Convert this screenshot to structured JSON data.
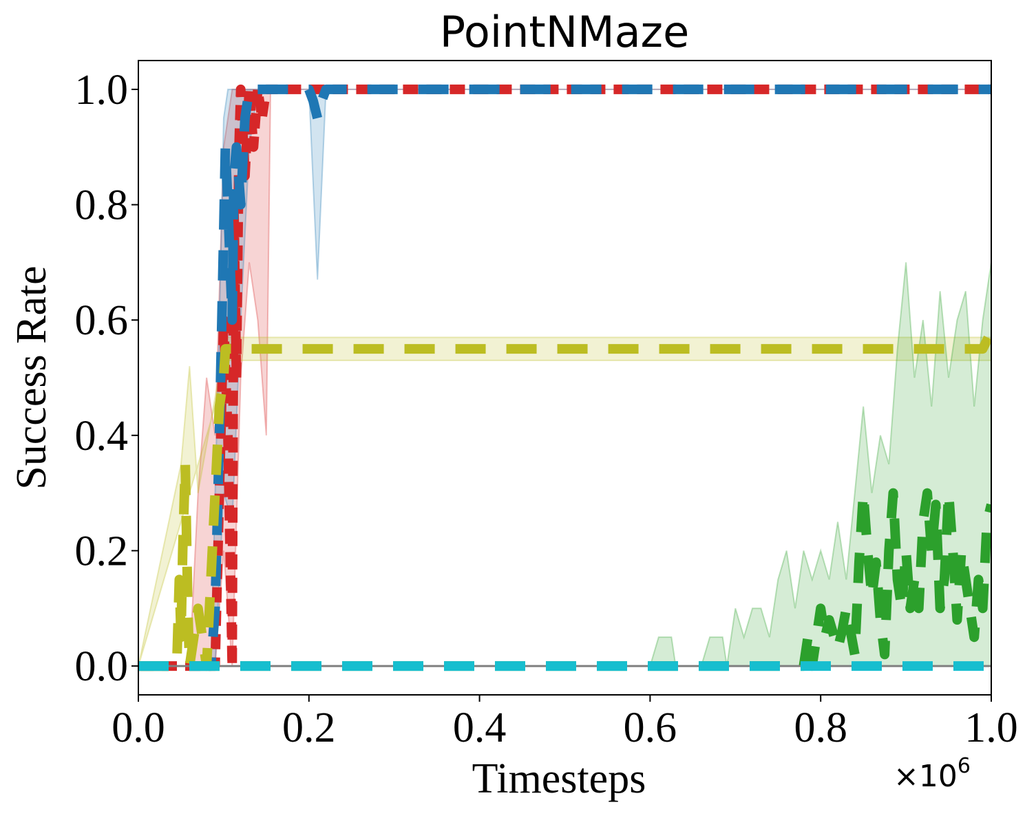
{
  "chart_data": {
    "type": "line",
    "title": "PointNMaze",
    "xlabel": "Timesteps",
    "ylabel": "Success Rate",
    "x_offset_label": "×10",
    "x_offset_exponent": "6",
    "xlim": [
      0.0,
      1.0
    ],
    "ylim": [
      -0.05,
      1.05
    ],
    "x_ticks": [
      "0.0",
      "0.2",
      "0.4",
      "0.6",
      "0.8",
      "1.0"
    ],
    "y_ticks": [
      "0.0",
      "0.2",
      "0.4",
      "0.6",
      "0.8",
      "1.0"
    ],
    "grid": false,
    "legend": "none",
    "series": [
      {
        "color": "#d62728",
        "style": "dash-short",
        "mean": [
          [
            0,
            0
          ],
          [
            0.09,
            0
          ],
          [
            0.095,
            0.3
          ],
          [
            0.1,
            0.6
          ],
          [
            0.105,
            0.4
          ],
          [
            0.11,
            0
          ],
          [
            0.112,
            0.8
          ],
          [
            0.115,
            0.5
          ],
          [
            0.118,
            0.9
          ],
          [
            0.12,
            1
          ],
          [
            0.125,
            0.85
          ],
          [
            0.13,
            1
          ],
          [
            0.135,
            0.9
          ],
          [
            0.14,
            1
          ],
          [
            0.145,
            0.95
          ],
          [
            0.15,
            1
          ],
          [
            0.2,
            1
          ],
          [
            0.4,
            1
          ],
          [
            0.6,
            1
          ],
          [
            0.8,
            1
          ],
          [
            1.0,
            1
          ]
        ],
        "band_low": [
          [
            0,
            0
          ],
          [
            0.09,
            0
          ],
          [
            0.1,
            0.2
          ],
          [
            0.11,
            0
          ],
          [
            0.12,
            0.5
          ],
          [
            0.13,
            0.7
          ],
          [
            0.14,
            0.6
          ],
          [
            0.15,
            0.4
          ],
          [
            0.155,
            1
          ],
          [
            1.0,
            1
          ]
        ],
        "band_high": [
          [
            0,
            0
          ],
          [
            0.06,
            0
          ],
          [
            0.07,
            0.3
          ],
          [
            0.08,
            0.5
          ],
          [
            0.09,
            0.4
          ],
          [
            0.1,
            0.9
          ],
          [
            0.11,
            1
          ],
          [
            0.12,
            1
          ],
          [
            0.15,
            1
          ],
          [
            1.0,
            1
          ]
        ]
      },
      {
        "color": "#1f77b4",
        "style": "dash-long",
        "mean": [
          [
            0,
            0
          ],
          [
            0.085,
            0
          ],
          [
            0.09,
            0.1
          ],
          [
            0.095,
            0.4
          ],
          [
            0.1,
            0.75
          ],
          [
            0.102,
            0.9
          ],
          [
            0.105,
            0.8
          ],
          [
            0.11,
            0.6
          ],
          [
            0.112,
            0.85
          ],
          [
            0.115,
            0.9
          ],
          [
            0.12,
            0.8
          ],
          [
            0.125,
            0.95
          ],
          [
            0.13,
            1
          ],
          [
            0.2,
            1
          ],
          [
            0.205,
            0.98
          ],
          [
            0.21,
            0.95
          ],
          [
            0.215,
            0.98
          ],
          [
            0.22,
            1
          ],
          [
            0.4,
            1
          ],
          [
            0.6,
            1
          ],
          [
            0.8,
            1
          ],
          [
            1.0,
            1
          ]
        ],
        "band_low": [
          [
            0,
            0
          ],
          [
            0.09,
            0
          ],
          [
            0.1,
            0.3
          ],
          [
            0.11,
            0.25
          ],
          [
            0.12,
            0.6
          ],
          [
            0.13,
            0.9
          ],
          [
            0.14,
            1
          ],
          [
            0.2,
            1
          ],
          [
            0.21,
            0.67
          ],
          [
            0.22,
            1
          ],
          [
            1.0,
            1
          ]
        ],
        "band_high": [
          [
            0,
            0
          ],
          [
            0.085,
            0
          ],
          [
            0.095,
            0.6
          ],
          [
            0.1,
            0.95
          ],
          [
            0.105,
            1
          ],
          [
            1.0,
            1
          ]
        ]
      },
      {
        "color": "#bcbd22",
        "style": "dash-long",
        "mean": [
          [
            0,
            0
          ],
          [
            0.045,
            0
          ],
          [
            0.048,
            0.15
          ],
          [
            0.05,
            0.05
          ],
          [
            0.052,
            0.2
          ],
          [
            0.055,
            0.35
          ],
          [
            0.058,
            0.1
          ],
          [
            0.06,
            0
          ],
          [
            0.065,
            0.05
          ],
          [
            0.07,
            0.1
          ],
          [
            0.075,
            0.05
          ],
          [
            0.08,
            0
          ],
          [
            0.085,
            0.15
          ],
          [
            0.09,
            0.3
          ],
          [
            0.095,
            0.45
          ],
          [
            0.1,
            0.5
          ],
          [
            0.102,
            0.55
          ],
          [
            0.2,
            0.55
          ],
          [
            0.4,
            0.55
          ],
          [
            0.6,
            0.55
          ],
          [
            0.8,
            0.55
          ],
          [
            0.99,
            0.55
          ],
          [
            1.0,
            0.58
          ]
        ],
        "band_low": [
          [
            0,
            0
          ],
          [
            0.1,
            0.5
          ],
          [
            0.102,
            0.53
          ],
          [
            1.0,
            0.53
          ]
        ],
        "band_high": [
          [
            0,
            0
          ],
          [
            0.05,
            0.35
          ],
          [
            0.06,
            0.52
          ],
          [
            0.07,
            0.3
          ],
          [
            0.1,
            0.55
          ],
          [
            0.102,
            0.57
          ],
          [
            1.0,
            0.57
          ]
        ]
      },
      {
        "color": "#2ca02c",
        "style": "dash-long",
        "mean": [
          [
            0,
            0
          ],
          [
            0.78,
            0
          ],
          [
            0.785,
            0.05
          ],
          [
            0.79,
            0
          ],
          [
            0.8,
            0.1
          ],
          [
            0.805,
            0.05
          ],
          [
            0.81,
            0.08
          ],
          [
            0.82,
            0.03
          ],
          [
            0.825,
            0.06
          ],
          [
            0.83,
            0.1
          ],
          [
            0.84,
            0.02
          ],
          [
            0.845,
            0.18
          ],
          [
            0.85,
            0.3
          ],
          [
            0.855,
            0.2
          ],
          [
            0.86,
            0.12
          ],
          [
            0.865,
            0.18
          ],
          [
            0.87,
            0.08
          ],
          [
            0.875,
            0.02
          ],
          [
            0.88,
            0.2
          ],
          [
            0.885,
            0.3
          ],
          [
            0.89,
            0.15
          ],
          [
            0.895,
            0.1
          ],
          [
            0.9,
            0.2
          ],
          [
            0.905,
            0.1
          ],
          [
            0.91,
            0.15
          ],
          [
            0.915,
            0.1
          ],
          [
            0.92,
            0.25
          ],
          [
            0.925,
            0.3
          ],
          [
            0.93,
            0.2
          ],
          [
            0.935,
            0.28
          ],
          [
            0.94,
            0.1
          ],
          [
            0.945,
            0.15
          ],
          [
            0.95,
            0.3
          ],
          [
            0.955,
            0.2
          ],
          [
            0.96,
            0.08
          ],
          [
            0.965,
            0.2
          ],
          [
            0.97,
            0.15
          ],
          [
            0.975,
            0.1
          ],
          [
            0.98,
            0.05
          ],
          [
            0.985,
            0.15
          ],
          [
            0.99,
            0.1
          ],
          [
            0.995,
            0.25
          ],
          [
            1.0,
            0.28
          ]
        ],
        "band_low": [
          [
            0,
            0
          ],
          [
            1.0,
            0
          ]
        ],
        "band_high": [
          [
            0,
            0
          ],
          [
            0.6,
            0
          ],
          [
            0.61,
            0.05
          ],
          [
            0.625,
            0.05
          ],
          [
            0.63,
            0
          ],
          [
            0.66,
            0
          ],
          [
            0.67,
            0.05
          ],
          [
            0.685,
            0.05
          ],
          [
            0.69,
            0
          ],
          [
            0.7,
            0.1
          ],
          [
            0.71,
            0.05
          ],
          [
            0.72,
            0.1
          ],
          [
            0.73,
            0.1
          ],
          [
            0.74,
            0.05
          ],
          [
            0.75,
            0.15
          ],
          [
            0.76,
            0.2
          ],
          [
            0.77,
            0.1
          ],
          [
            0.78,
            0.2
          ],
          [
            0.79,
            0.15
          ],
          [
            0.8,
            0.2
          ],
          [
            0.81,
            0.15
          ],
          [
            0.82,
            0.25
          ],
          [
            0.83,
            0.15
          ],
          [
            0.84,
            0.3
          ],
          [
            0.85,
            0.45
          ],
          [
            0.86,
            0.3
          ],
          [
            0.87,
            0.4
          ],
          [
            0.88,
            0.35
          ],
          [
            0.89,
            0.55
          ],
          [
            0.9,
            0.7
          ],
          [
            0.91,
            0.5
          ],
          [
            0.92,
            0.6
          ],
          [
            0.93,
            0.45
          ],
          [
            0.94,
            0.65
          ],
          [
            0.95,
            0.5
          ],
          [
            0.96,
            0.6
          ],
          [
            0.97,
            0.65
          ],
          [
            0.98,
            0.45
          ],
          [
            0.99,
            0.6
          ],
          [
            1.0,
            0.7
          ]
        ]
      },
      {
        "color": "#7f7f7f",
        "style": "solid",
        "mean": [
          [
            0,
            0
          ],
          [
            1.0,
            0
          ]
        ],
        "band_low": [
          [
            0,
            0
          ],
          [
            1.0,
            0
          ]
        ],
        "band_high": [
          [
            0,
            0
          ],
          [
            1.0,
            0
          ]
        ]
      },
      {
        "color": "#17becf",
        "style": "dash-long",
        "mean": [
          [
            0,
            0
          ],
          [
            1.0,
            0
          ]
        ],
        "band_low": [
          [
            0,
            0
          ],
          [
            1.0,
            0
          ]
        ],
        "band_high": [
          [
            0,
            0
          ],
          [
            1.0,
            0
          ]
        ]
      }
    ]
  }
}
